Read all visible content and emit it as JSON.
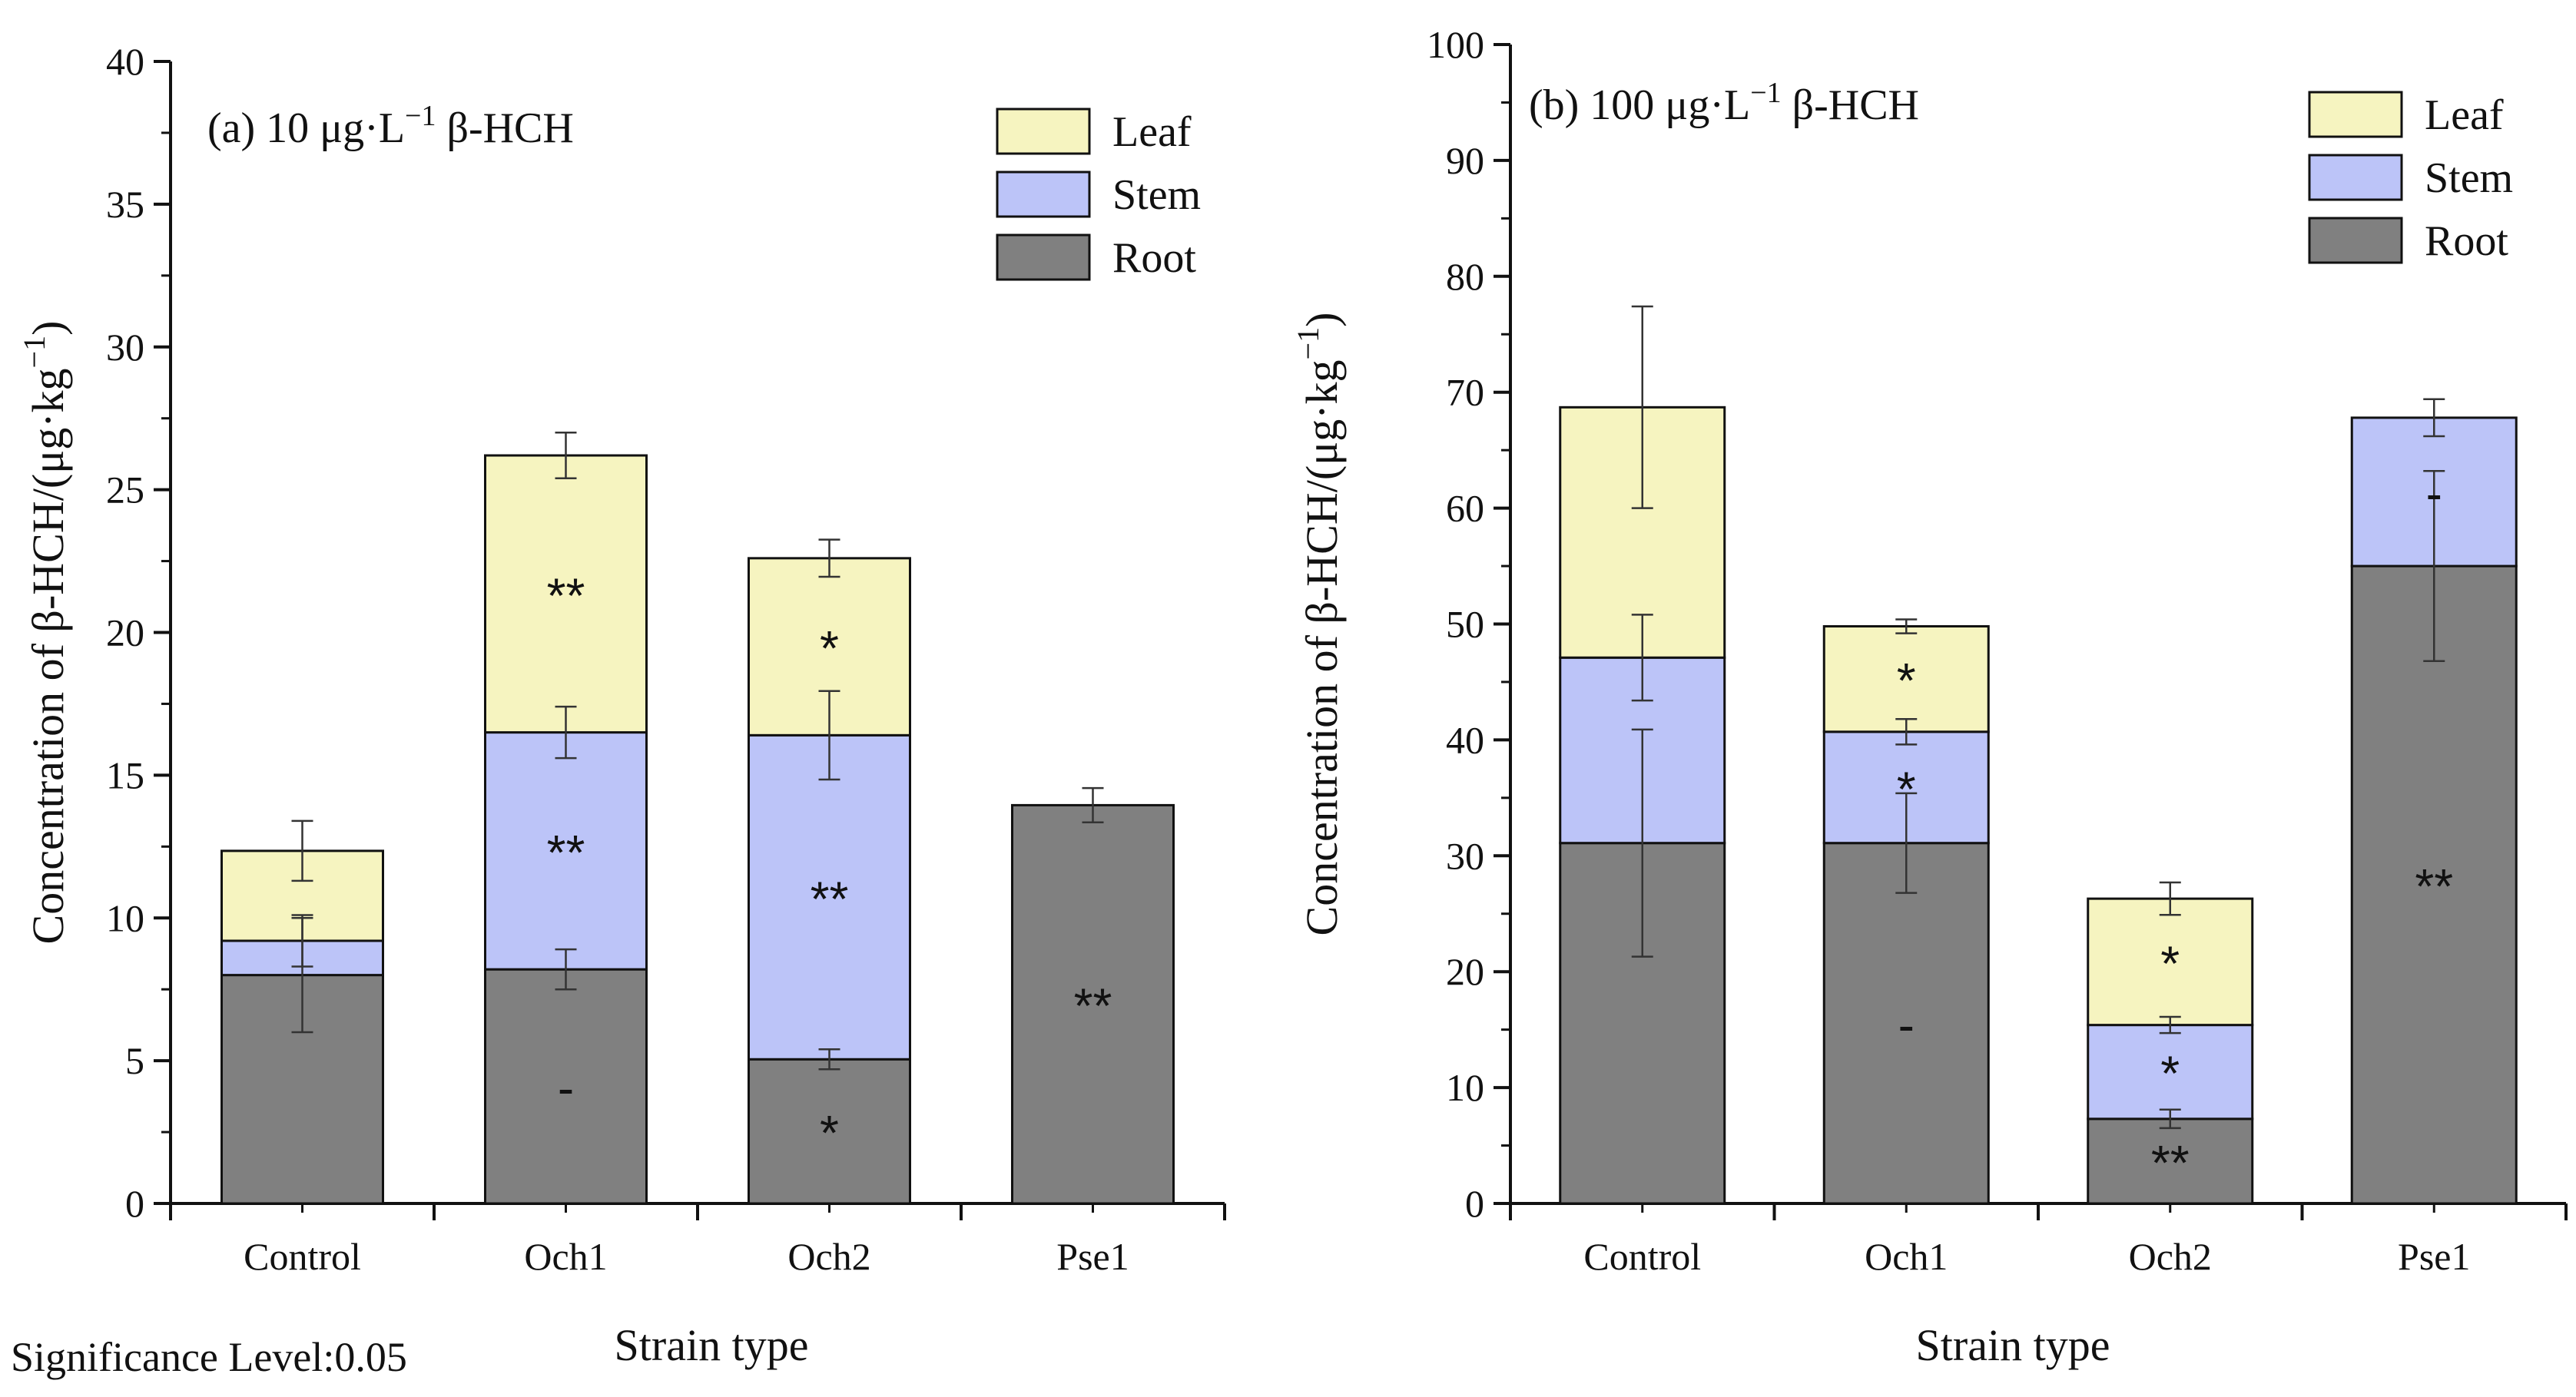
{
  "note": "Significance Level:0.05",
  "legend": [
    {
      "key": "leaf",
      "label": "Leaf",
      "color": "#f6f4c0"
    },
    {
      "key": "stem",
      "label": "Stem",
      "color": "#bcc4f8"
    },
    {
      "key": "root",
      "label": "Root",
      "color": "#808080"
    }
  ],
  "chart_data": [
    {
      "type": "bar",
      "stacked": true,
      "title": "(a) 10 μg·L⁻¹ β-HCH",
      "xlabel": "Strain type",
      "ylabel": "Concentration of β-HCH/(μg·kg⁻¹)",
      "ylim": [
        0,
        40
      ],
      "yticks": [
        0,
        5,
        10,
        15,
        20,
        25,
        30,
        35,
        40
      ],
      "yticks_labeled": [
        0,
        5,
        10,
        15,
        20,
        25,
        30,
        35,
        40
      ],
      "legend_position": "top-right",
      "categories": [
        "Control",
        "Och1",
        "Och2",
        "Pse1"
      ],
      "series": [
        {
          "name": "Root",
          "values": [
            8.0,
            8.2,
            5.05,
            13.95
          ],
          "err": [
            2.0,
            0.7,
            0.35,
            0.6
          ],
          "sig": [
            "",
            "-",
            "*",
            "**"
          ]
        },
        {
          "name": "Stem",
          "values": [
            1.2,
            8.3,
            11.35,
            0
          ],
          "err": [
            0.9,
            0.9,
            1.55,
            0
          ],
          "sig": [
            "",
            "**",
            "**",
            ""
          ]
        },
        {
          "name": "Leaf",
          "values": [
            3.15,
            9.7,
            6.2,
            0
          ],
          "err": [
            1.05,
            0.8,
            0.65,
            0
          ],
          "sig": [
            "",
            "**",
            "*",
            ""
          ]
        }
      ]
    },
    {
      "type": "bar",
      "stacked": true,
      "title": "(b) 100 μg·L⁻¹ β-HCH",
      "xlabel": "Strain type",
      "ylabel": "Concentration of β-HCH/(μg·kg⁻¹)",
      "ylim": [
        0,
        100
      ],
      "yticks": [
        0,
        10,
        20,
        30,
        40,
        50,
        60,
        70,
        80,
        90,
        100
      ],
      "yticks_labeled": [
        0,
        10,
        20,
        30,
        40,
        50,
        60,
        70,
        80,
        90,
        100
      ],
      "legend_position": "top-right",
      "categories": [
        "Control",
        "Och1",
        "Och2",
        "Pse1"
      ],
      "series": [
        {
          "name": "Root",
          "values": [
            31.1,
            31.1,
            7.3,
            55.0
          ],
          "err": [
            9.8,
            4.3,
            0.8,
            8.2
          ],
          "sig": [
            "",
            "-",
            "**",
            "**"
          ]
        },
        {
          "name": "Stem",
          "values": [
            16.0,
            9.6,
            8.1,
            12.8
          ],
          "err": [
            3.7,
            1.1,
            0.7,
            1.6
          ],
          "sig": [
            "",
            "*",
            "*",
            "-"
          ]
        },
        {
          "name": "Leaf",
          "values": [
            21.6,
            9.1,
            10.9,
            0
          ],
          "err": [
            8.7,
            0.6,
            1.4,
            0
          ],
          "sig": [
            "",
            "*",
            "*",
            ""
          ]
        }
      ]
    }
  ]
}
